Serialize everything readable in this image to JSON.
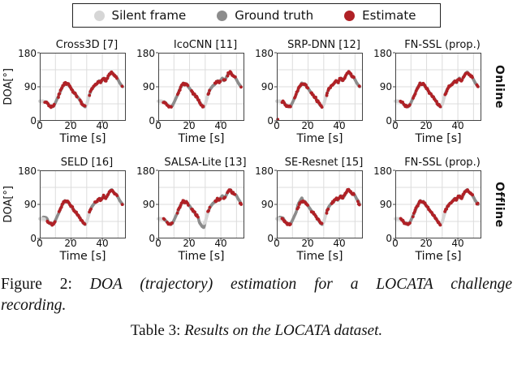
{
  "colors": {
    "estimate": "#b02126",
    "ground_truth": "#8c8c8c",
    "silent": "#d6d6d6",
    "grid": "#dcdcdc",
    "spine": "#444444"
  },
  "legend": {
    "items": [
      {
        "name": "silent-frame",
        "label": "Silent frame",
        "color": "#d6d6d6"
      },
      {
        "name": "ground-truth",
        "label": "Ground truth",
        "color": "#8c8c8c"
      },
      {
        "name": "estimate",
        "label": "Estimate",
        "color": "#b02126"
      }
    ]
  },
  "figure": {
    "ylabel": "DOA[°]",
    "xlabel": "Time [s]",
    "yticks": [
      "180",
      "90",
      "0"
    ],
    "xticks": [
      "0",
      "20",
      "40"
    ],
    "row_labels": [
      "Online",
      "Offline"
    ]
  },
  "captions": {
    "figure": {
      "prefix": "Figure 2:",
      "body_line1": "DOA (trajectory) estimation for a LOCATA challenge",
      "body_line2": "recording."
    },
    "table": {
      "prefix": "Table 3:",
      "body": "Results on the LOCATA dataset."
    }
  },
  "chart_data": {
    "type": "scatter",
    "xlabel": "Time [s]",
    "ylabel": "DOA[°]",
    "xlim": [
      0,
      55
    ],
    "ylim": [
      0,
      180
    ],
    "xticks": [
      0,
      20,
      40
    ],
    "yticks": [
      0,
      90,
      180
    ],
    "x_gridlines": [
      10,
      20,
      30,
      40,
      50
    ],
    "y_gridlines": [
      45,
      90,
      135
    ],
    "grid": true,
    "legend_entries": [
      "Silent frame",
      "Ground truth",
      "Estimate"
    ],
    "trajectory_deg_vs_s": [
      [
        0,
        52
      ],
      [
        2,
        52
      ],
      [
        4,
        50
      ],
      [
        5,
        46
      ],
      [
        6,
        41
      ],
      [
        7,
        38
      ],
      [
        8,
        37
      ],
      [
        9,
        40
      ],
      [
        10,
        48
      ],
      [
        11,
        57
      ],
      [
        12,
        66
      ],
      [
        13,
        76
      ],
      [
        14,
        86
      ],
      [
        15,
        93
      ],
      [
        16,
        100
      ],
      [
        17,
        96
      ],
      [
        18,
        98
      ],
      [
        19,
        91
      ],
      [
        20,
        86
      ],
      [
        21,
        80
      ],
      [
        22,
        74
      ],
      [
        23,
        69
      ],
      [
        24,
        64
      ],
      [
        25,
        59
      ],
      [
        26,
        52
      ],
      [
        27,
        46
      ],
      [
        28,
        40
      ],
      [
        29,
        37
      ],
      [
        30,
        44
      ],
      [
        31,
        58
      ],
      [
        32,
        72
      ],
      [
        33,
        82
      ],
      [
        34,
        88
      ],
      [
        35,
        93
      ],
      [
        36,
        96
      ],
      [
        37,
        101
      ],
      [
        38,
        106
      ],
      [
        39,
        101
      ],
      [
        40,
        108
      ],
      [
        41,
        113
      ],
      [
        42,
        106
      ],
      [
        43,
        111
      ],
      [
        44,
        119
      ],
      [
        45,
        126
      ],
      [
        46,
        129
      ],
      [
        47,
        123
      ],
      [
        48,
        119
      ],
      [
        49,
        116
      ],
      [
        50,
        109
      ],
      [
        51,
        101
      ],
      [
        52,
        95
      ],
      [
        53,
        90
      ]
    ],
    "silent_ranges_s": [
      [
        0,
        3.0
      ],
      [
        29.3,
        31.6
      ]
    ],
    "panels": [
      {
        "title": "Cross3D [7]",
        "row": "Online",
        "estimate_gaps": [
          [
            9.5,
            11.3
          ],
          [
            24.2,
            25.6
          ],
          [
            49.8,
            52.6
          ]
        ],
        "gt_deviations": [],
        "extra_estimates": []
      },
      {
        "title": "IcoCNN [11]",
        "row": "Online",
        "estimate_gaps": [
          [
            8.8,
            12
          ],
          [
            19,
            21
          ],
          [
            33,
            36
          ],
          [
            40.2,
            41.6
          ],
          [
            43,
            44.2
          ],
          [
            49.5,
            52.6
          ]
        ],
        "gt_deviations": [],
        "extra_estimates": []
      },
      {
        "title": "SRP-DNN [12]",
        "row": "Online",
        "estimate_gaps": [
          [
            9.3,
            11.2
          ],
          [
            20,
            21.6
          ],
          [
            49.8,
            52.4
          ]
        ],
        "gt_deviations": [],
        "extra_estimates": [
          [
            0.6,
            4
          ]
        ]
      },
      {
        "title": "FN-SSL (prop.)",
        "row": "Online",
        "estimate_gaps": [
          [
            9.8,
            11
          ],
          [
            49.8,
            52.2
          ]
        ],
        "gt_deviations": [],
        "extra_estimates": []
      },
      {
        "title": "SELD [16]",
        "row": "Offline",
        "estimate_gaps": [
          [
            2,
            4.6
          ],
          [
            10,
            12
          ],
          [
            33,
            34.8
          ],
          [
            49.6,
            52.6
          ]
        ],
        "gt_deviations": [
          {
            "range": [
              1.5,
              5.5
            ],
            "offset": 5
          }
        ],
        "extra_estimates": []
      },
      {
        "title": "SALSA-Lite [13]",
        "row": "Offline",
        "estimate_gaps": [
          [
            4,
            5.6
          ],
          [
            9,
            12
          ],
          [
            19.4,
            21.2
          ],
          [
            25.8,
            30
          ],
          [
            33,
            36
          ],
          [
            40.2,
            41.4
          ],
          [
            43,
            44.2
          ],
          [
            49.3,
            52.2
          ]
        ],
        "gt_deviations": [
          {
            "range": [
              25.5,
              30.2
            ],
            "offset": -8
          },
          {
            "range": [
              49,
              53
            ],
            "offset": 4
          }
        ],
        "extra_estimates": [
          [
            53,
            90
          ]
        ]
      },
      {
        "title": "SE-Resnet [15]",
        "row": "Offline",
        "estimate_gaps": [
          [
            9,
            13
          ],
          [
            20,
            22
          ],
          [
            33,
            35
          ],
          [
            49.5,
            51.4
          ]
        ],
        "gt_deviations": [
          {
            "range": [
              1,
              5
            ],
            "offset": 4
          },
          {
            "range": [
              12.5,
              17
            ],
            "offset": 7
          },
          {
            "range": [
              48.5,
              53
            ],
            "offset": 4
          }
        ],
        "extra_estimates": []
      },
      {
        "title": "FN-SSL (prop.)",
        "row": "Offline",
        "estimate_gaps": [
          [
            9.8,
            11
          ],
          [
            49.8,
            52.2
          ]
        ],
        "gt_deviations": [],
        "extra_estimates": []
      }
    ]
  }
}
